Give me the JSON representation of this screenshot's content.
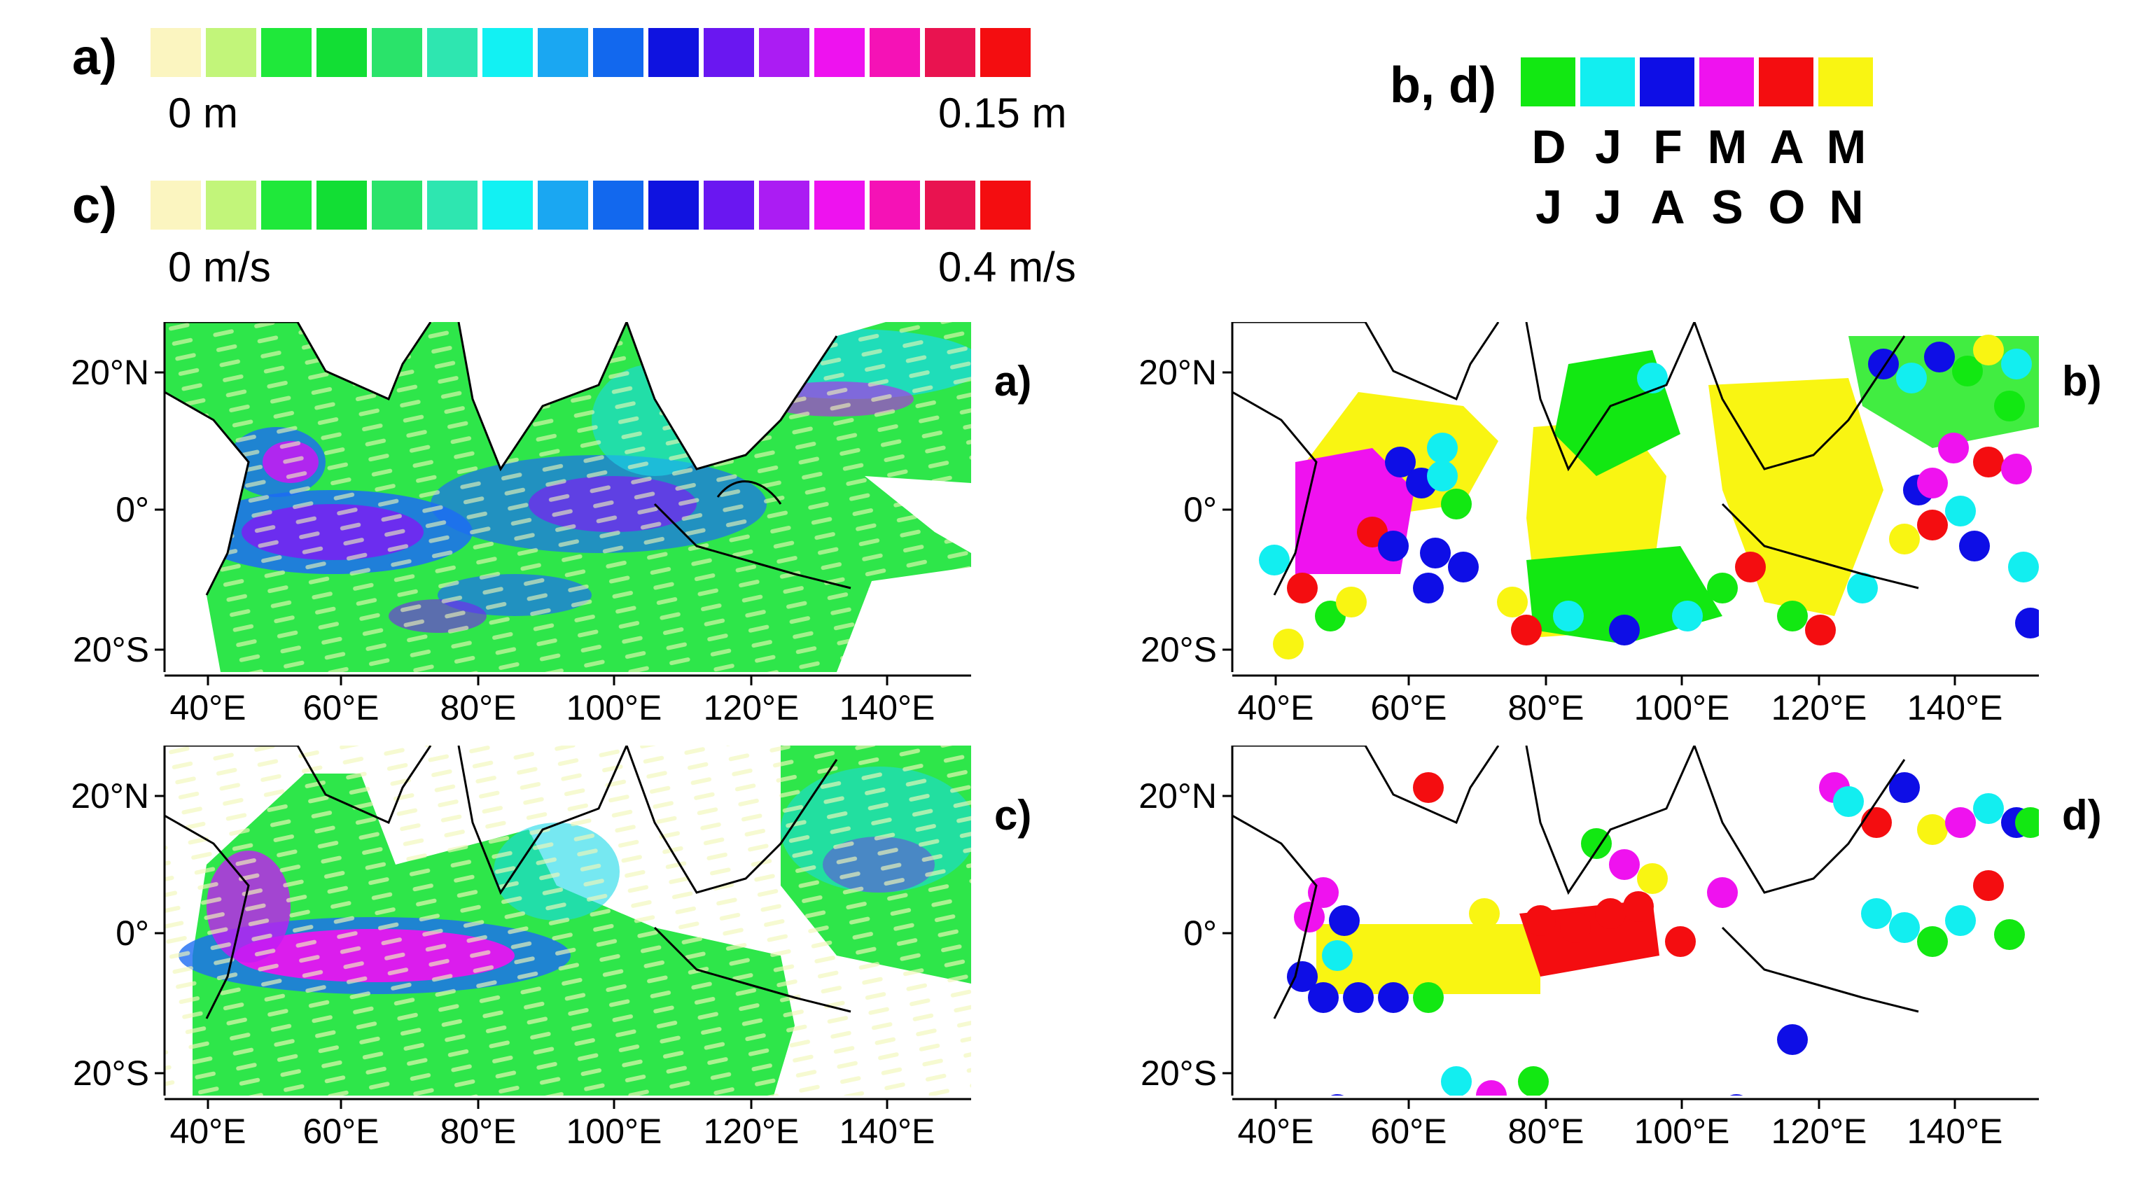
{
  "colorbar_a": {
    "label": "a)",
    "min_label": "0 m",
    "max_label": "0.15 m",
    "colors": [
      "#fbf5c0",
      "#c2f57a",
      "#1fe83a",
      "#12de34",
      "#2ae36a",
      "#2ee6b0",
      "#12f1f3",
      "#1aa7f2",
      "#1268ee",
      "#0f13e0",
      "#6a17f1",
      "#ab1cf3",
      "#ee12ef",
      "#f512b6",
      "#e91350",
      "#f40d10"
    ]
  },
  "colorbar_c": {
    "label": "c)",
    "min_label": "0 m/s",
    "max_label": "0.4 m/s",
    "colors": [
      "#fbf5c0",
      "#c2f57a",
      "#1fe83a",
      "#12de34",
      "#2ae36a",
      "#2ee6b0",
      "#12f1f3",
      "#1aa7f2",
      "#1268ee",
      "#0f13e0",
      "#6a17f1",
      "#ab1cf3",
      "#ee12ef",
      "#f512b6",
      "#e91350",
      "#f40d10"
    ]
  },
  "month_legend": {
    "label": "b, d)",
    "colors": [
      "#12e812",
      "#12eef0",
      "#0e0ee6",
      "#ef12ef",
      "#f40d10",
      "#f9f512"
    ],
    "row1": [
      "D",
      "J",
      "F",
      "M",
      "A",
      "M"
    ],
    "row2": [
      "J",
      "J",
      "A",
      "S",
      "O",
      "N"
    ]
  },
  "axes": {
    "lat_ticks": [
      "20°N",
      "0°",
      "20°S"
    ],
    "lon_ticks": [
      "40°E",
      "60°E",
      "80°E",
      "100°E",
      "120°E",
      "140°E"
    ]
  },
  "panels": [
    {
      "id": "a",
      "tag": "a)"
    },
    {
      "id": "b",
      "tag": "b)"
    },
    {
      "id": "c",
      "tag": "c)"
    },
    {
      "id": "d",
      "tag": "d)"
    }
  ]
}
